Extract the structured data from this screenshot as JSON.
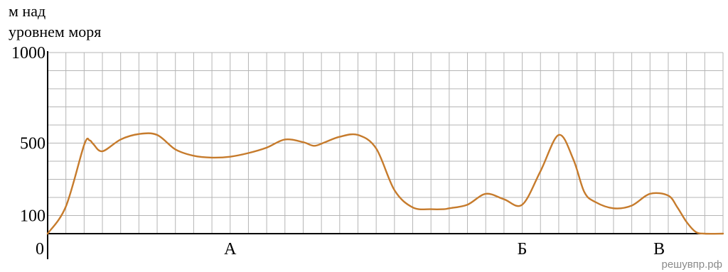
{
  "chart_data": {
    "type": "line",
    "ylabel_lines": [
      "м над",
      "уровнем моря"
    ],
    "ylim": [
      0,
      1000
    ],
    "xlim": [
      0,
      37
    ],
    "y_ticks": [
      {
        "value": 0,
        "label": "0"
      },
      {
        "value": 100,
        "label": "100"
      },
      {
        "value": 500,
        "label": "500"
      },
      {
        "value": 1000,
        "label": "1000"
      }
    ],
    "grid": true,
    "grid_y_step": 100,
    "grid_x_step": 1,
    "series": [
      {
        "color": "#c67b2c",
        "x": [
          0,
          1,
          2,
          2.3,
          2.5,
          3,
          4,
          5,
          6,
          7,
          8,
          9,
          10,
          11,
          12,
          13,
          14,
          14.6,
          15.2,
          16,
          17,
          18,
          19,
          20,
          21,
          21.7,
          22,
          23,
          24,
          25,
          26,
          27,
          28,
          28.8,
          29.4,
          30,
          31,
          32,
          33,
          34,
          34.5,
          35,
          35.5,
          36,
          37
        ],
        "y": [
          0,
          150,
          490,
          515,
          495,
          455,
          520,
          550,
          545,
          465,
          430,
          420,
          425,
          445,
          475,
          520,
          505,
          485,
          505,
          535,
          545,
          470,
          240,
          145,
          135,
          135,
          140,
          160,
          220,
          190,
          160,
          345,
          545,
          410,
          230,
          175,
          140,
          155,
          220,
          210,
          145,
          65,
          10,
          0,
          0
        ]
      }
    ],
    "categories": [
      {
        "x": 10,
        "label": "А"
      },
      {
        "x": 26,
        "label": "Б"
      },
      {
        "x": 33.5,
        "label": "В"
      }
    ]
  },
  "watermark": "решувпр.рф"
}
